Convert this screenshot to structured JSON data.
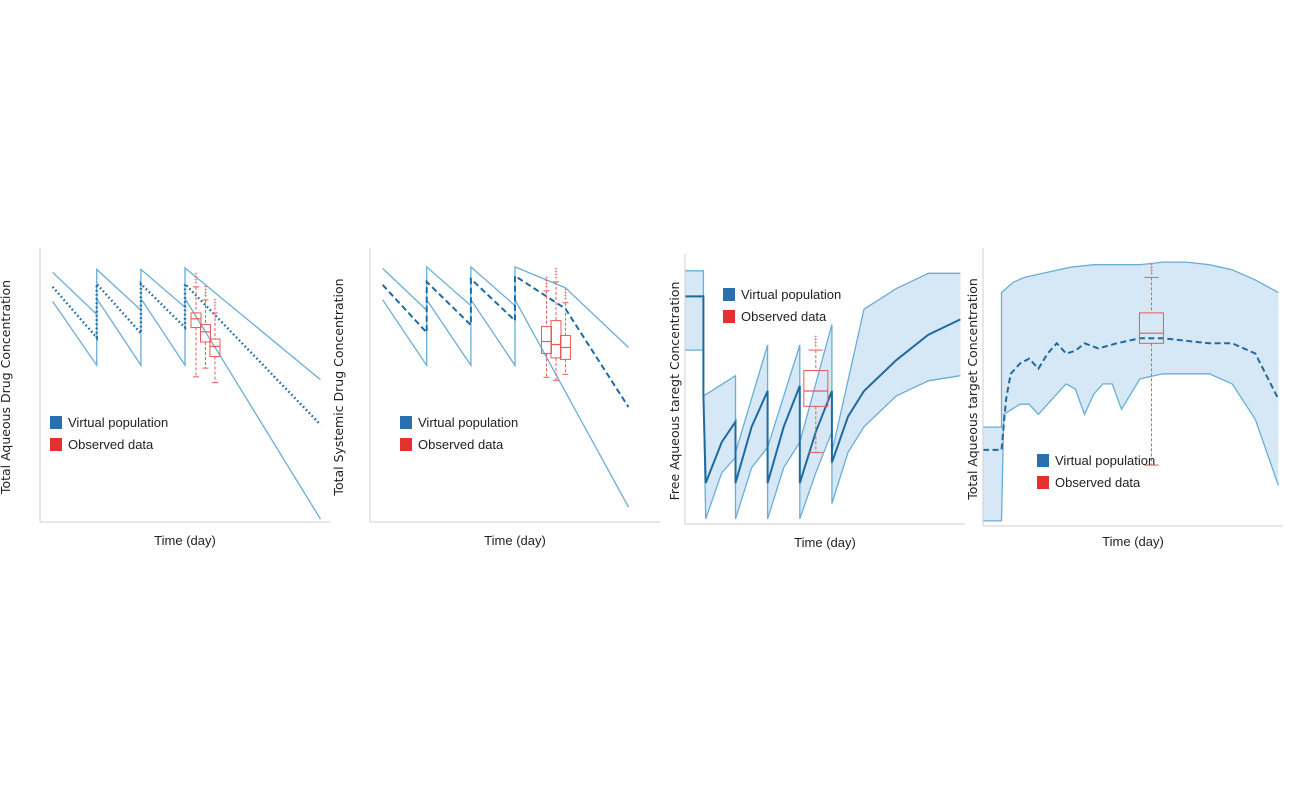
{
  "colors": {
    "band": "#6aaed6",
    "band_fill": "#d6e8f5",
    "median": "#1f6aa0",
    "legend_virtual": "#2a6fb0",
    "legend_observed": "#e53030",
    "observed": "#e85a5a"
  },
  "chart_data": [
    {
      "type": "line",
      "title": "",
      "xlabel": "Time (day)",
      "ylabel": "Total Aqueous Drug Concentration",
      "legend": [
        "Virtual population",
        "Observed data"
      ],
      "grid": false,
      "legend_position": "bottom-left",
      "band_style": "lines",
      "median_style": "dotted",
      "series": [
        {
          "label": "Virtual population upper",
          "points": [
            [
              0,
              92
            ],
            [
              14,
              63
            ],
            [
              14,
              94
            ],
            [
              28,
              66
            ],
            [
              28,
              94
            ],
            [
              42,
              68
            ],
            [
              42,
              95
            ],
            [
              85,
              18
            ]
          ]
        },
        {
          "label": "Virtual population median",
          "points": [
            [
              0,
              82
            ],
            [
              14,
              47
            ],
            [
              14,
              84
            ],
            [
              28,
              50
            ],
            [
              28,
              84
            ],
            [
              42,
              54
            ],
            [
              42,
              84
            ],
            [
              85,
              -13
            ]
          ]
        },
        {
          "label": "Virtual population lower",
          "points": [
            [
              0,
              72
            ],
            [
              14,
              28
            ],
            [
              14,
              74
            ],
            [
              28,
              28
            ],
            [
              28,
              74
            ],
            [
              42,
              28
            ],
            [
              42,
              74
            ],
            [
              85,
              -78
            ]
          ]
        }
      ],
      "observed_boxes": [
        {
          "x": 45.5,
          "min": 20,
          "q1": 54,
          "median": 60,
          "q3": 64,
          "max": 82
        },
        {
          "x": 48.5,
          "min": 26,
          "q1": 44,
          "median": 51,
          "q3": 56,
          "max": 73
        },
        {
          "x": 51.5,
          "min": 16,
          "q1": 34,
          "median": 41,
          "q3": 46,
          "max": 64
        }
      ]
    },
    {
      "type": "line",
      "title": "",
      "xlabel": "Time (day)",
      "ylabel": "Total Systemic Drug Concentration",
      "legend": [
        "Virtual population",
        "Observed data"
      ],
      "grid": false,
      "legend_position": "bottom-left",
      "band_style": "lines",
      "median_style": "dashed",
      "series": [
        {
          "label": "Virtual population upper",
          "points": [
            [
              0,
              95
            ],
            [
              14,
              67
            ],
            [
              14,
              96
            ],
            [
              28,
              70
            ],
            [
              28,
              96
            ],
            [
              42,
              70
            ],
            [
              42,
              96
            ],
            [
              58,
              82
            ],
            [
              78,
              42
            ]
          ]
        },
        {
          "label": "Virtual population median",
          "points": [
            [
              0,
              84
            ],
            [
              14,
              52
            ],
            [
              14,
              86
            ],
            [
              28,
              57
            ],
            [
              28,
              88
            ],
            [
              42,
              60
            ],
            [
              42,
              90
            ],
            [
              58,
              68
            ],
            [
              78,
              2
            ]
          ]
        },
        {
          "label": "Virtual population lower",
          "points": [
            [
              0,
              74
            ],
            [
              14,
              30
            ],
            [
              14,
              74
            ],
            [
              28,
              30
            ],
            [
              28,
              74
            ],
            [
              42,
              30
            ],
            [
              42,
              74
            ],
            [
              78,
              -65
            ]
          ]
        }
      ],
      "observed_boxes": [
        {
          "x": 52,
          "min": 22,
          "q1": 38,
          "median": 46,
          "q3": 56,
          "max": 80
        },
        {
          "x": 55,
          "min": 20,
          "q1": 35,
          "median": 44,
          "q3": 60,
          "max": 86
        },
        {
          "x": 58,
          "min": 24,
          "q1": 34,
          "median": 42,
          "q3": 50,
          "max": 72
        }
      ]
    },
    {
      "type": "area",
      "title": "",
      "xlabel": "Time (day)",
      "ylabel": "Free Aqueous taregt Concentration",
      "legend": [
        "Virtual population",
        "Observed data"
      ],
      "grid": false,
      "legend_position": "top-left",
      "band_style": "filled",
      "median_style": "solid",
      "series": [
        {
          "label": "Virtual population upper",
          "points": [
            [
              -8,
              97
            ],
            [
              0,
              97
            ],
            [
              0,
              48
            ],
            [
              14,
              56
            ],
            [
              14,
              26
            ],
            [
              28,
              68
            ],
            [
              28,
              28
            ],
            [
              42,
              68
            ],
            [
              42,
              30
            ],
            [
              56,
              76
            ],
            [
              56,
              26
            ],
            [
              70,
              82
            ],
            [
              84,
              90
            ],
            [
              98,
              96
            ],
            [
              112,
              96
            ]
          ]
        },
        {
          "label": "Virtual population median",
          "points": [
            [
              -8,
              87
            ],
            [
              0,
              87
            ],
            [
              0,
              48
            ],
            [
              1,
              14
            ],
            [
              8,
              30
            ],
            [
              14,
              38
            ],
            [
              14,
              14
            ],
            [
              21,
              36
            ],
            [
              28,
              50
            ],
            [
              28,
              14
            ],
            [
              35,
              36
            ],
            [
              42,
              52
            ],
            [
              42,
              14
            ],
            [
              49,
              34
            ],
            [
              56,
              50
            ],
            [
              56,
              22
            ],
            [
              63,
              40
            ],
            [
              70,
              50
            ],
            [
              84,
              62
            ],
            [
              98,
              72
            ],
            [
              112,
              78
            ]
          ]
        },
        {
          "label": "Virtual population lower",
          "points": [
            [
              -8,
              66
            ],
            [
              0,
              66
            ],
            [
              0,
              48
            ],
            [
              1,
              0
            ],
            [
              8,
              18
            ],
            [
              14,
              24
            ],
            [
              14,
              0
            ],
            [
              21,
              20
            ],
            [
              28,
              28
            ],
            [
              28,
              0
            ],
            [
              35,
              20
            ],
            [
              42,
              30
            ],
            [
              42,
              0
            ],
            [
              49,
              18
            ],
            [
              56,
              34
            ],
            [
              56,
              6
            ],
            [
              63,
              26
            ],
            [
              70,
              36
            ],
            [
              84,
              48
            ],
            [
              98,
              54
            ],
            [
              112,
              56
            ]
          ]
        }
      ],
      "observed_boxes": [
        {
          "x": 49,
          "min": 26,
          "q1": 44,
          "median": 50,
          "q3": 58,
          "max": 66
        }
      ]
    },
    {
      "type": "area",
      "title": "",
      "xlabel": "Time (day)",
      "ylabel": "Total Aqueous target Concentration",
      "legend": [
        "Virtual population",
        "Observed data"
      ],
      "grid": false,
      "legend_position": "bottom-left",
      "band_style": "filled",
      "median_style": "dashed",
      "series": [
        {
          "label": "Virtual population upper",
          "points": [
            [
              -8,
              35
            ],
            [
              0,
              35
            ],
            [
              0,
              88
            ],
            [
              5,
              92
            ],
            [
              10,
              94
            ],
            [
              20,
              96
            ],
            [
              30,
              98
            ],
            [
              40,
              99
            ],
            [
              50,
              99
            ],
            [
              60,
              99
            ],
            [
              70,
              100
            ],
            [
              80,
              100
            ],
            [
              90,
              99
            ],
            [
              100,
              97
            ],
            [
              110,
              93
            ],
            [
              120,
              88
            ]
          ]
        },
        {
          "label": "Virtual population median",
          "points": [
            [
              -8,
              26
            ],
            [
              0,
              26
            ],
            [
              2,
              46
            ],
            [
              4,
              56
            ],
            [
              8,
              60
            ],
            [
              12,
              62
            ],
            [
              16,
              58
            ],
            [
              20,
              64
            ],
            [
              24,
              68
            ],
            [
              28,
              64
            ],
            [
              32,
              65
            ],
            [
              36,
              68
            ],
            [
              42,
              66
            ],
            [
              50,
              68
            ],
            [
              60,
              70
            ],
            [
              70,
              70
            ],
            [
              80,
              69
            ],
            [
              90,
              68
            ],
            [
              100,
              68
            ],
            [
              110,
              64
            ],
            [
              120,
              46
            ]
          ]
        },
        {
          "label": "Virtual population lower",
          "points": [
            [
              -8,
              -2
            ],
            [
              0,
              -2
            ],
            [
              1,
              40
            ],
            [
              8,
              44
            ],
            [
              12,
              44
            ],
            [
              16,
              40
            ],
            [
              20,
              44
            ],
            [
              24,
              48
            ],
            [
              28,
              52
            ],
            [
              32,
              50
            ],
            [
              36,
              40
            ],
            [
              40,
              48
            ],
            [
              44,
              52
            ],
            [
              48,
              52
            ],
            [
              52,
              42
            ],
            [
              56,
              48
            ],
            [
              60,
              54
            ],
            [
              70,
              56
            ],
            [
              80,
              56
            ],
            [
              90,
              56
            ],
            [
              100,
              52
            ],
            [
              110,
              38
            ],
            [
              120,
              12
            ]
          ]
        }
      ],
      "observed_boxes": [
        {
          "x": 65,
          "min": 20,
          "q1": 68,
          "median": 72,
          "q3": 80,
          "max": 94
        }
      ]
    }
  ]
}
